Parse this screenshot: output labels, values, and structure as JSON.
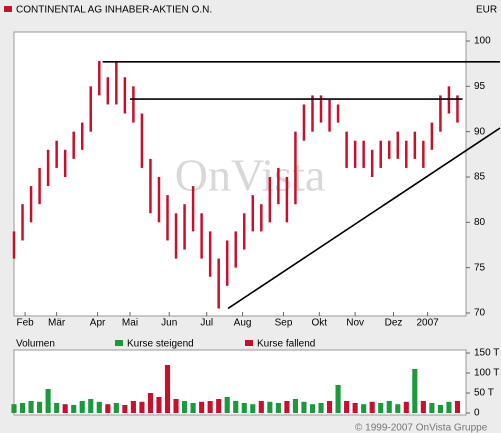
{
  "chart_data": [
    {
      "type": "range-bar",
      "title": "CONTINENTAL AG INHABER-AKTIEN O.N.",
      "currency": "EUR",
      "watermark": "OnVista",
      "color": "#c8102e",
      "x": [
        0,
        1,
        2,
        3,
        4,
        5,
        6,
        7,
        8,
        9,
        10,
        11,
        12,
        13,
        14,
        15,
        16,
        17,
        18,
        19,
        20,
        21,
        22,
        23,
        24,
        25,
        26,
        27,
        28,
        29,
        30,
        31,
        32,
        33,
        34,
        35,
        36,
        37,
        38,
        39,
        40,
        41,
        42,
        43,
        44,
        45,
        46,
        47,
        48,
        49,
        50,
        51,
        52
      ],
      "low": [
        76,
        78,
        80,
        82,
        84,
        86,
        85,
        87,
        88,
        90,
        94,
        93,
        93,
        92,
        91,
        86,
        81,
        80,
        78,
        76,
        77,
        79,
        76,
        74,
        70.5,
        73,
        75,
        77,
        79,
        79,
        80,
        82,
        80,
        82,
        89,
        90,
        91,
        90,
        91,
        86,
        86,
        86,
        85,
        86,
        87,
        87,
        86,
        87,
        86,
        88,
        90,
        92,
        91
      ],
      "high": [
        79,
        82,
        84,
        86,
        88,
        89,
        88,
        90,
        91,
        95,
        97.8,
        96,
        97.8,
        96,
        95,
        92,
        87,
        85,
        83,
        81,
        82,
        84,
        81,
        79,
        76,
        78,
        79,
        81,
        83,
        82,
        85,
        86,
        85,
        90,
        93,
        94,
        94,
        93.5,
        93,
        90,
        89,
        89,
        88,
        89,
        89,
        90,
        89,
        90,
        89,
        91,
        94,
        95,
        94
      ],
      "xlim": [
        0,
        53
      ],
      "xticks": [
        {
          "value": 1.3,
          "label": "Feb"
        },
        {
          "value": 5.0,
          "label": "Mär"
        },
        {
          "value": 9.8,
          "label": "Apr"
        },
        {
          "value": 13.6,
          "label": "Mai"
        },
        {
          "value": 18.2,
          "label": "Jun"
        },
        {
          "value": 22.6,
          "label": "Jul"
        },
        {
          "value": 26.8,
          "label": "Aug"
        },
        {
          "value": 31.6,
          "label": "Sep"
        },
        {
          "value": 35.8,
          "label": "Okt"
        },
        {
          "value": 40.0,
          "label": "Nov"
        },
        {
          "value": 44.5,
          "label": "Dez"
        },
        {
          "value": 48.5,
          "label": "2007"
        }
      ],
      "ylim": [
        70,
        100
      ],
      "yticks": [
        70,
        75,
        80,
        85,
        90,
        95,
        100
      ],
      "trendlines": [
        {
          "x": [
            10.4,
            57
          ],
          "y": [
            97.7,
            97.7
          ]
        },
        {
          "x": [
            13.6,
            52.6
          ],
          "y": [
            93.6,
            93.6
          ]
        },
        {
          "x": [
            25.1,
            57
          ],
          "y": [
            70.5,
            90.4
          ]
        }
      ]
    },
    {
      "type": "bar",
      "title": "Volumen",
      "legend": [
        {
          "name": "Kurse steigend",
          "color": "#1a9a3a"
        },
        {
          "name": "Kurse fallend",
          "color": "#c8102e"
        }
      ],
      "values": [
        22,
        25,
        30,
        28,
        60,
        25,
        22,
        20,
        30,
        35,
        28,
        22,
        25,
        20,
        30,
        28,
        50,
        40,
        120,
        35,
        30,
        25,
        28,
        30,
        35,
        40,
        30,
        25,
        22,
        30,
        28,
        25,
        30,
        35,
        28,
        22,
        25,
        30,
        70,
        30,
        25,
        22,
        28,
        25,
        30,
        22,
        28,
        110,
        30,
        25,
        20,
        28,
        30
      ],
      "ylim": [
        0,
        150
      ],
      "yticks": [
        {
          "value": 0,
          "label": "0"
        },
        {
          "value": 50,
          "label": "50 T"
        },
        {
          "value": 100,
          "label": "100 T"
        },
        {
          "value": 150,
          "label": "150 T"
        }
      ]
    },
    {
      "type": "footer",
      "title": "© 1999-2007 OnVista Gruppe"
    }
  ]
}
